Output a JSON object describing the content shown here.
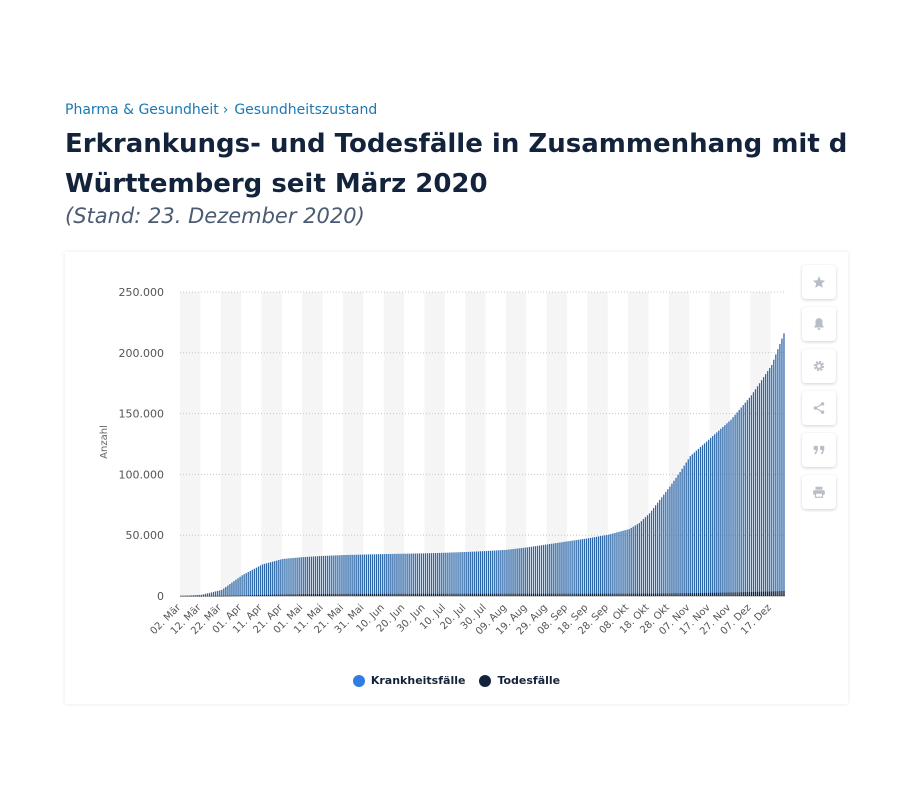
{
  "breadcrumb": {
    "items": [
      "Pharma & Gesundheit",
      "Gesundheitszustand"
    ],
    "separator": "›"
  },
  "title": {
    "line1": "Erkrankungs- und Todesfälle in Zusammenhang mit dem Coronavirus in Baden-",
    "line2": "Württemberg seit März 2020"
  },
  "subtitle": "(Stand: 23. Dezember 2020)",
  "toolbar": {
    "icons": [
      "star-icon",
      "bell-icon",
      "gear-icon",
      "share-icon",
      "quote-icon",
      "print-icon"
    ]
  },
  "colors": {
    "cases": "#2a66a8",
    "deaths": "#14233c",
    "legend_cases": "#2f7de1",
    "band": "#f5f5f5",
    "grid": "#c8c8c8"
  },
  "chart_data": {
    "type": "bar",
    "ylabel": "Anzahl",
    "ylim": [
      0,
      250000
    ],
    "yticks": [
      0,
      50000,
      100000,
      150000,
      200000,
      250000
    ],
    "ytick_labels": [
      "0",
      "50.000",
      "100.000",
      "150.000",
      "200.000",
      "250.000"
    ],
    "x_start": "02. Mär",
    "x_end": "23. Dez",
    "num_days": 297,
    "tick_every_days": 10,
    "xtick_labels": [
      "02. Mär",
      "12. Mär",
      "22. Mär",
      "01. Apr",
      "11. Apr",
      "21. Apr",
      "01. Mai",
      "11. Mai",
      "21. Mai",
      "31. Mai",
      "10. Jun",
      "20. Jun",
      "30. Jun",
      "10. Jul",
      "20. Jul",
      "30. Jul",
      "09. Aug",
      "19. Aug",
      "29. Aug",
      "08. Sep",
      "18. Sep",
      "28. Sep",
      "08. Okt",
      "18. Okt",
      "28. Okt",
      "07. Nov",
      "17. Nov",
      "27. Nov",
      "07. Dez",
      "17. Dez"
    ],
    "series": [
      {
        "name": "Krankheitsfälle",
        "key_days": [
          0,
          10,
          20,
          30,
          40,
          50,
          60,
          70,
          80,
          90,
          100,
          110,
          120,
          130,
          140,
          150,
          160,
          170,
          180,
          190,
          200,
          210,
          220,
          225,
          230,
          240,
          245,
          250,
          260,
          270,
          280,
          290,
          296
        ],
        "key_values": [
          0,
          1000,
          5000,
          17000,
          26000,
          30500,
          32000,
          33000,
          33700,
          34100,
          34500,
          34800,
          35100,
          35600,
          36200,
          37000,
          38000,
          40000,
          42500,
          45000,
          47500,
          50500,
          55000,
          60000,
          68000,
          90000,
          102000,
          115000,
          130000,
          145000,
          165000,
          190000,
          216000
        ]
      },
      {
        "name": "Todesfälle",
        "key_days": [
          0,
          20,
          30,
          40,
          50,
          60,
          80,
          100,
          150,
          200,
          230,
          250,
          270,
          290,
          296
        ],
        "key_values": [
          0,
          50,
          400,
          900,
          1300,
          1600,
          1750,
          1800,
          1850,
          1900,
          2000,
          2300,
          2900,
          3700,
          4200
        ]
      }
    ],
    "legend": [
      "Krankheitsfälle",
      "Todesfälle"
    ]
  }
}
